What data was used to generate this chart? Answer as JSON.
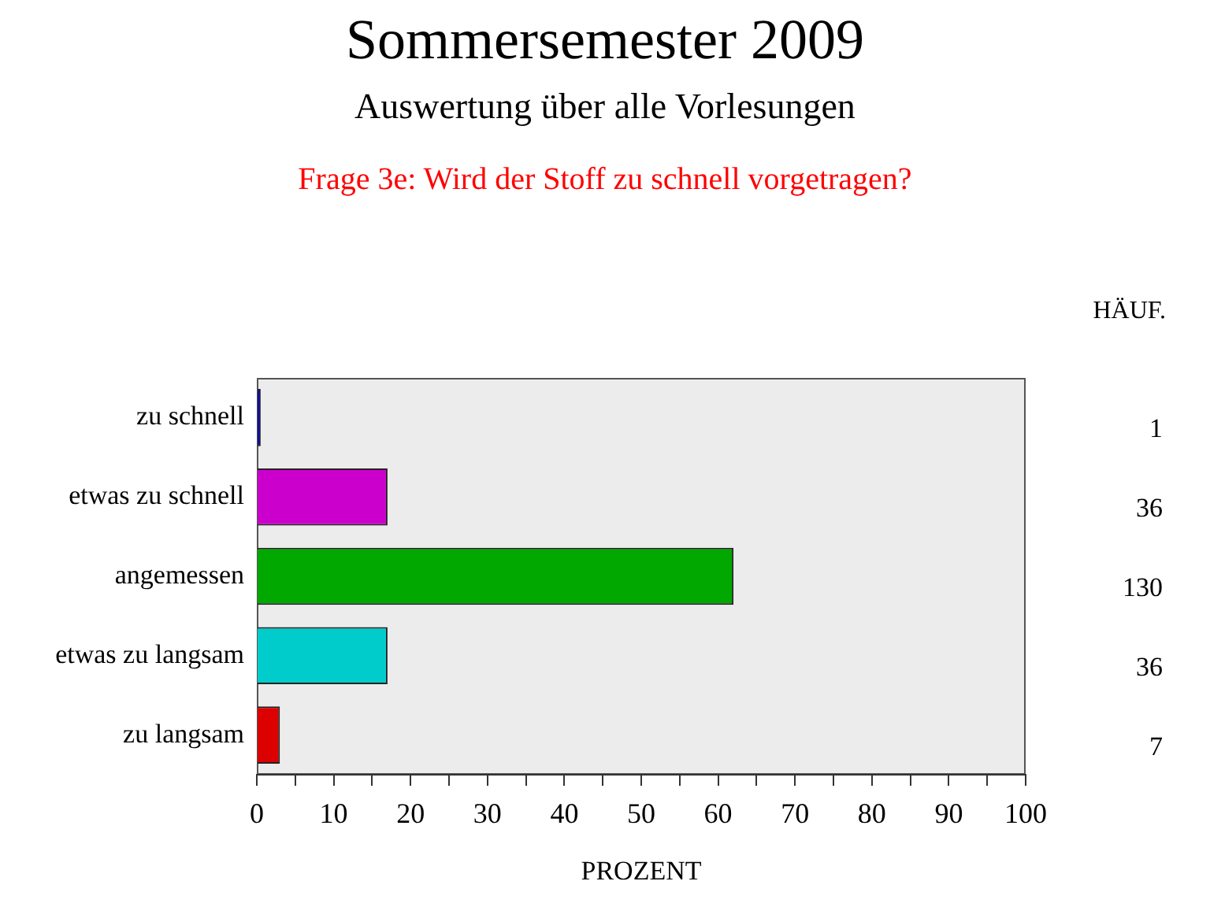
{
  "chart_data": {
    "type": "bar",
    "orientation": "horizontal",
    "title": "Sommersemester 2009",
    "subtitle": "Auswertung über alle Vorlesungen",
    "annotations": [
      "Frage 3e: Wird der Stoff zu schnell vorgetragen?",
      "HÄUF.",
      "1",
      "36",
      "130",
      "36",
      "7"
    ],
    "xlabel": "PROZENT",
    "categories": [
      "zu schnell",
      "etwas zu schnell",
      "angemessen",
      "etwas zu langsam",
      "zu langsam"
    ],
    "values": [
      0.5,
      17,
      62,
      17,
      3
    ],
    "colors": [
      "#0000cc",
      "#cc00cc",
      "#00a800",
      "#00cccc",
      "#dd0000"
    ],
    "xlim": [
      0,
      100
    ],
    "xticks": [
      0,
      {
        "value": 5,
        "label": null
      },
      10,
      {
        "value": 15,
        "label": null
      },
      20,
      {
        "value": 25,
        "label": null
      },
      30,
      {
        "value": 35,
        "label": null
      },
      40,
      {
        "value": 45,
        "label": null
      },
      50,
      {
        "value": 55,
        "label": null
      },
      60,
      {
        "value": 65,
        "label": null
      },
      70,
      {
        "value": 75,
        "label": null
      },
      80,
      {
        "value": 85,
        "label": null
      },
      90,
      {
        "value": 95,
        "label": null
      },
      100
    ]
  }
}
